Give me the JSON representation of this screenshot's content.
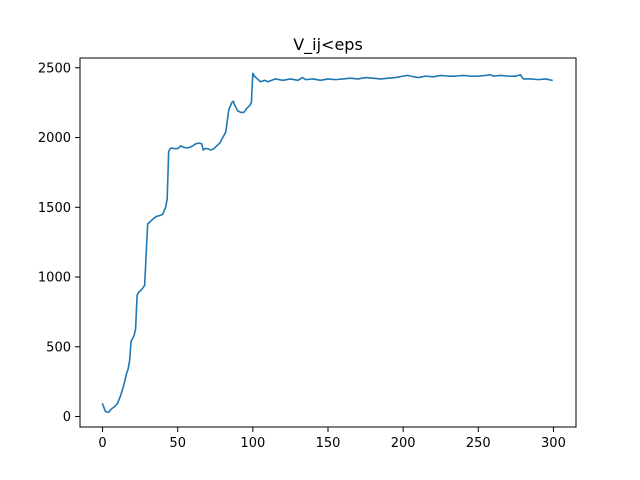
{
  "chart_data": {
    "type": "line",
    "title": "V_ij<eps",
    "xlabel": "",
    "ylabel": "",
    "xlim": [
      -15,
      315
    ],
    "ylim": [
      -75,
      2570
    ],
    "xticks": [
      0,
      50,
      100,
      150,
      200,
      250,
      300
    ],
    "yticks": [
      0,
      500,
      1000,
      1500,
      2000,
      2500
    ],
    "xtick_labels": [
      "0",
      "50",
      "100",
      "150",
      "200",
      "250",
      "300"
    ],
    "ytick_labels": [
      "0",
      "500",
      "1000",
      "1500",
      "2000",
      "2500"
    ],
    "grid": false,
    "legend": "none",
    "series": [
      {
        "color": "#1f77b4",
        "x": [
          0,
          2,
          4,
          6,
          8,
          10,
          12,
          14,
          16,
          17,
          18,
          19,
          20,
          21,
          22,
          23,
          24,
          26,
          28,
          30,
          31,
          32,
          34,
          36,
          38,
          40,
          42,
          43,
          44,
          45,
          46,
          48,
          50,
          52,
          54,
          56,
          58,
          60,
          62,
          64,
          66,
          67,
          68,
          70,
          72,
          74,
          76,
          78,
          80,
          82,
          84,
          86,
          87,
          88,
          89,
          90,
          92,
          94,
          96,
          98,
          99,
          100,
          101,
          103,
          105,
          108,
          110,
          115,
          120,
          125,
          130,
          133,
          135,
          140,
          145,
          150,
          155,
          160,
          165,
          170,
          175,
          180,
          185,
          190,
          195,
          200,
          203,
          205,
          210,
          215,
          220,
          225,
          230,
          235,
          240,
          245,
          250,
          255,
          258,
          260,
          265,
          270,
          275,
          278,
          280,
          285,
          290,
          295,
          299
        ],
        "y": [
          90,
          35,
          30,
          55,
          70,
          95,
          150,
          220,
          310,
          340,
          400,
          540,
          560,
          580,
          630,
          870,
          890,
          910,
          940,
          1380,
          1390,
          1400,
          1420,
          1435,
          1440,
          1450,
          1500,
          1560,
          1900,
          1920,
          1925,
          1920,
          1920,
          1940,
          1930,
          1925,
          1930,
          1940,
          1955,
          1960,
          1955,
          1910,
          1920,
          1920,
          1910,
          1920,
          1940,
          1960,
          2000,
          2040,
          2200,
          2250,
          2260,
          2230,
          2210,
          2190,
          2180,
          2180,
          2210,
          2230,
          2250,
          2460,
          2440,
          2420,
          2400,
          2410,
          2400,
          2420,
          2410,
          2420,
          2410,
          2430,
          2415,
          2420,
          2410,
          2420,
          2415,
          2420,
          2425,
          2420,
          2430,
          2425,
          2420,
          2425,
          2430,
          2440,
          2445,
          2440,
          2430,
          2440,
          2435,
          2445,
          2440,
          2440,
          2445,
          2440,
          2440,
          2445,
          2450,
          2440,
          2445,
          2440,
          2440,
          2450,
          2420,
          2420,
          2415,
          2420,
          2410
        ]
      }
    ]
  }
}
